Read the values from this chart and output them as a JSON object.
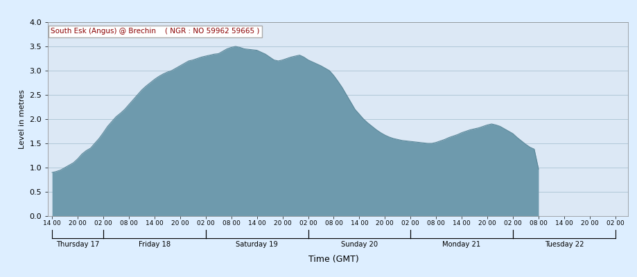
{
  "title_box_text": "South Esk (Angus) @ Brechin    ( NGR : NO 59962 59665 )",
  "ylabel": "Level in metres",
  "xlabel": "Time (GMT)",
  "background_color": "#ddeeff",
  "plot_bg_color": "#dce8f5",
  "fill_color": "#6e9aad",
  "line_color": "#5a8799",
  "ylim": [
    0.0,
    4.0
  ],
  "yticks": [
    0.0,
    0.5,
    1.0,
    1.5,
    2.0,
    2.5,
    3.0,
    3.5,
    4.0
  ],
  "days": [
    "Thursday 17",
    "Friday 18",
    "Saturday 19",
    "Sunday 20",
    "Monday 21",
    "Tuesday 22"
  ],
  "hour_ticks_labels": [
    "14 00",
    "20 00",
    "02 00",
    "08 00",
    "14 00",
    "20 00",
    "02 00",
    "08 00",
    "14 00",
    "20 00",
    "02 00",
    "08 00",
    "14 00",
    "20 00",
    "02 00",
    "08 00",
    "14 00",
    "20 00",
    "02 00",
    "08 00",
    "14 00",
    "20 00",
    "02 00"
  ],
  "day_boundaries": [
    0,
    12,
    36,
    60,
    84,
    108,
    132
  ],
  "data_end_x": 114,
  "xlim_min": -1,
  "xlim_max": 135,
  "x_data": [
    0,
    1,
    2,
    3,
    4,
    5,
    6,
    7,
    8,
    9,
    10,
    11,
    12,
    13,
    14,
    15,
    16,
    17,
    18,
    19,
    20,
    21,
    22,
    23,
    24,
    25,
    26,
    27,
    28,
    29,
    30,
    31,
    32,
    33,
    34,
    35,
    36,
    37,
    38,
    39,
    40,
    41,
    42,
    43,
    44,
    45,
    46,
    47,
    48,
    49,
    50,
    51,
    52,
    53,
    54,
    55,
    56,
    57,
    58,
    59,
    60,
    61,
    62,
    63,
    64,
    65,
    66,
    67,
    68,
    69,
    70,
    71,
    72,
    73,
    74,
    75,
    76,
    77,
    78,
    79,
    80,
    81,
    82,
    83,
    84,
    85,
    86,
    87,
    88,
    89,
    90,
    91,
    92,
    93,
    94,
    95,
    96,
    97,
    98,
    99,
    100,
    101,
    102,
    103,
    104,
    105,
    106,
    107,
    108,
    109,
    110,
    111,
    112,
    113,
    114
  ],
  "y_data": [
    0.9,
    0.92,
    0.95,
    1.0,
    1.05,
    1.1,
    1.18,
    1.28,
    1.35,
    1.4,
    1.5,
    1.6,
    1.72,
    1.85,
    1.95,
    2.05,
    2.12,
    2.2,
    2.3,
    2.4,
    2.5,
    2.6,
    2.68,
    2.75,
    2.82,
    2.88,
    2.93,
    2.97,
    3.0,
    3.05,
    3.1,
    3.15,
    3.2,
    3.22,
    3.25,
    3.28,
    3.3,
    3.32,
    3.34,
    3.35,
    3.4,
    3.45,
    3.48,
    3.5,
    3.48,
    3.45,
    3.44,
    3.43,
    3.42,
    3.38,
    3.34,
    3.28,
    3.22,
    3.2,
    3.22,
    3.25,
    3.28,
    3.3,
    3.32,
    3.28,
    3.22,
    3.18,
    3.14,
    3.1,
    3.05,
    3.0,
    2.9,
    2.78,
    2.65,
    2.5,
    2.35,
    2.2,
    2.1,
    2.0,
    1.92,
    1.85,
    1.78,
    1.72,
    1.67,
    1.63,
    1.6,
    1.58,
    1.56,
    1.55,
    1.54,
    1.53,
    1.52,
    1.51,
    1.5,
    1.5,
    1.52,
    1.55,
    1.58,
    1.62,
    1.65,
    1.68,
    1.72,
    1.75,
    1.78,
    1.8,
    1.82,
    1.85,
    1.88,
    1.9,
    1.88,
    1.85,
    1.8,
    1.75,
    1.7,
    1.62,
    1.55,
    1.48,
    1.42,
    1.38,
    0.97
  ]
}
